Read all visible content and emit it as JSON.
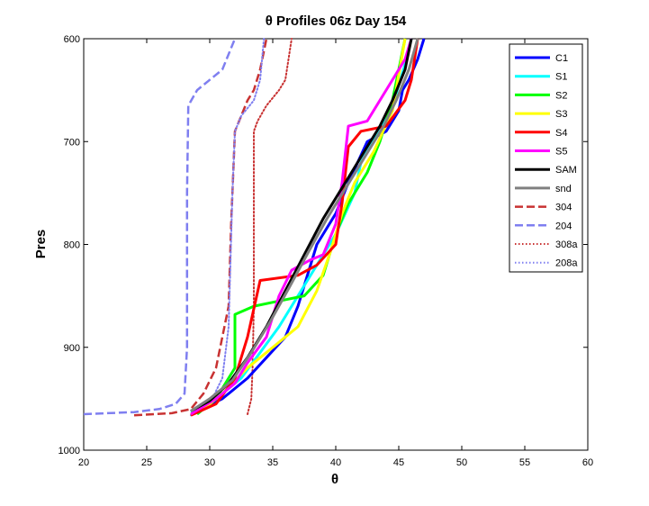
{
  "chart_data": {
    "type": "line",
    "title": "θ Profiles 06z Day 154",
    "xlabel": "θ",
    "ylabel": "Pres",
    "xlim": [
      20,
      60
    ],
    "ylim": [
      1000,
      600
    ],
    "y_reversed": true,
    "x_ticks": [
      20,
      25,
      30,
      35,
      40,
      45,
      50,
      55,
      60
    ],
    "y_ticks": [
      600,
      700,
      800,
      900,
      1000
    ],
    "x_tick_labels": [
      "20",
      "25",
      "30",
      "35",
      "40",
      "45",
      "50",
      "55",
      "60"
    ],
    "y_tick_labels": [
      "600",
      "700",
      "800",
      "900",
      "1000"
    ],
    "grid": false,
    "legend_position": "top-right",
    "series": [
      {
        "name": "C1",
        "color": "#0000ff",
        "dash": "solid",
        "width": 3,
        "x": [
          29.0,
          31.0,
          33.0,
          34.5,
          36.0,
          37.0,
          38.5,
          40.0,
          41.0,
          42.5,
          44.0,
          45.0,
          45.3,
          45.8,
          46.5,
          47.0
        ],
        "y": [
          962,
          950,
          930,
          910,
          890,
          860,
          800,
          770,
          740,
          700,
          690,
          670,
          650,
          640,
          620,
          600
        ]
      },
      {
        "name": "S1",
        "color": "#00ffff",
        "dash": "solid",
        "width": 3,
        "x": [
          28.5,
          30.5,
          32.5,
          34.0,
          35.5,
          37.0,
          38.5,
          40.0,
          41.5,
          42.0,
          43.5,
          44.5,
          45.0,
          45.5,
          46.0
        ],
        "y": [
          963,
          950,
          930,
          905,
          880,
          850,
          820,
          790,
          750,
          720,
          690,
          665,
          645,
          625,
          600
        ]
      },
      {
        "name": "S2",
        "color": "#00ff00",
        "dash": "solid",
        "width": 3,
        "x": [
          29.0,
          30.5,
          32.0,
          32.0,
          33.5,
          35.5,
          37.5,
          39.0,
          40.0,
          41.0,
          42.5,
          43.5,
          44.5,
          45.5
        ],
        "y": [
          965,
          950,
          920,
          868,
          860,
          855,
          850,
          830,
          790,
          760,
          730,
          700,
          660,
          600
        ]
      },
      {
        "name": "S3",
        "color": "#ffff00",
        "dash": "solid",
        "width": 3,
        "x": [
          29.5,
          31.0,
          33.0,
          35.0,
          37.0,
          38.5,
          39.5,
          40.5,
          41.5,
          43.0,
          44.5,
          45.5
        ],
        "y": [
          960,
          945,
          920,
          900,
          880,
          845,
          810,
          770,
          740,
          710,
          670,
          600
        ]
      },
      {
        "name": "S4",
        "color": "#ff0000",
        "dash": "solid",
        "width": 3,
        "x": [
          28.5,
          30.5,
          32.0,
          33.0,
          34.0,
          37.0,
          38.5,
          40.0,
          40.5,
          41.0,
          42.0,
          44.0,
          45.5,
          46.0,
          46.5
        ],
        "y": [
          966,
          955,
          930,
          890,
          835,
          830,
          820,
          800,
          760,
          705,
          690,
          685,
          660,
          640,
          600
        ]
      },
      {
        "name": "S5",
        "color": "#ff00ff",
        "dash": "solid",
        "width": 3,
        "x": [
          28.5,
          30.5,
          32.0,
          33.0,
          34.5,
          35.5,
          36.5,
          38.0,
          39.0,
          40.0,
          40.5,
          41.0,
          42.5,
          44.0,
          45.5,
          46.0
        ],
        "y": [
          965,
          950,
          935,
          915,
          890,
          850,
          825,
          815,
          810,
          780,
          740,
          685,
          680,
          650,
          620,
          600
        ]
      },
      {
        "name": "SAM",
        "color": "#000000",
        "dash": "solid",
        "width": 3,
        "x": [
          28.5,
          30.0,
          31.5,
          33.0,
          34.5,
          36.0,
          37.5,
          39.0,
          40.5,
          42.0,
          43.5,
          44.5,
          45.5,
          46.0
        ],
        "y": [
          962,
          952,
          935,
          910,
          880,
          845,
          810,
          775,
          745,
          715,
          685,
          660,
          630,
          600
        ]
      },
      {
        "name": "snd",
        "color": "#808080",
        "dash": "solid",
        "width": 3,
        "x": [
          28.5,
          30.0,
          31.8,
          33.3,
          34.8,
          36.3,
          37.8,
          39.3,
          40.8,
          42.3,
          43.8,
          44.8,
          45.8,
          46.5
        ],
        "y": [
          962,
          950,
          932,
          905,
          875,
          842,
          808,
          775,
          745,
          715,
          685,
          660,
          630,
          600
        ]
      },
      {
        "name": "304",
        "color": "#c83232",
        "dash": "dashed",
        "width": 2.5,
        "x": [
          24.0,
          27.0,
          28.5,
          29.5,
          30.5,
          31.0,
          31.5,
          31.7,
          32.0,
          32.5,
          33.0,
          33.5,
          34.0,
          34.5
        ],
        "y": [
          966,
          964,
          960,
          945,
          920,
          890,
          860,
          780,
          690,
          675,
          660,
          650,
          630,
          600
        ]
      },
      {
        "name": "204",
        "color": "#7f7ff0",
        "dash": "dashed",
        "width": 2.5,
        "x": [
          20.0,
          24.0,
          26.0,
          27.3,
          28.0,
          28.2,
          28.2,
          28.3,
          29.0,
          30.0,
          31.0,
          32.0
        ],
        "y": [
          965,
          963,
          960,
          955,
          945,
          900,
          750,
          665,
          650,
          640,
          630,
          600
        ]
      },
      {
        "name": "308a",
        "color": "#c83232",
        "dash": "dotted",
        "width": 2,
        "x": [
          33.0,
          33.3,
          33.4,
          33.5,
          33.5,
          33.8,
          34.5,
          35.5,
          36.0,
          36.5
        ],
        "y": [
          965,
          950,
          920,
          860,
          690,
          680,
          665,
          650,
          640,
          600
        ]
      },
      {
        "name": "208a",
        "color": "#7f7ff0",
        "dash": "dotted",
        "width": 2,
        "x": [
          28.5,
          30.0,
          31.0,
          31.5,
          31.8,
          32.0,
          32.5,
          33.5,
          34.0,
          34.3
        ],
        "y": [
          966,
          955,
          930,
          880,
          750,
          690,
          675,
          660,
          640,
          600
        ]
      }
    ]
  }
}
